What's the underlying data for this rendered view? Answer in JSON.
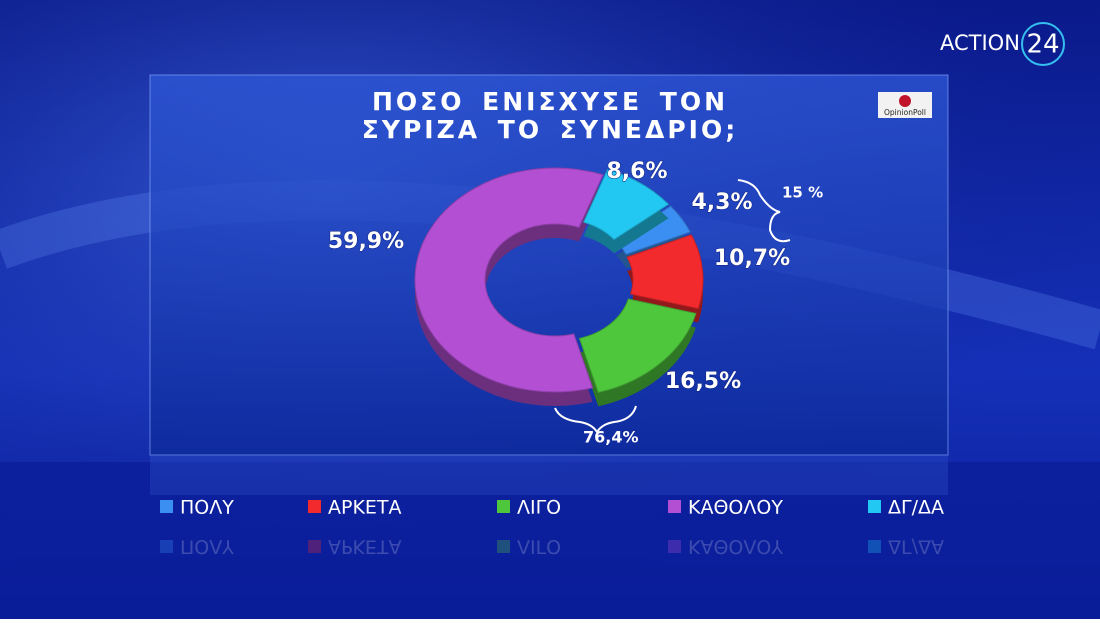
{
  "brand": {
    "name": "ACTION",
    "number": "24"
  },
  "source_logo": "OpinionPoll",
  "chart_data": {
    "type": "donut",
    "title": "ΠΟΣΟ ΕΝΙΣΧΥΣΕ ΤΟΝ ΣΥΡΙΖΑ ΤΟ ΣΥΝΕΔΡΙΟ;",
    "categories": [
      "ΠΟΛΥ",
      "ΑΡΚΕΤΑ",
      "ΛΙΓΟ",
      "ΚΑΘΟΛΟΥ",
      "ΔΓ/ΔΑ"
    ],
    "values": [
      4.3,
      10.7,
      16.5,
      59.9,
      8.6
    ],
    "value_labels": [
      "4,3%",
      "10,7%",
      "16,5%",
      "59,9%",
      "8,6%"
    ],
    "colors": [
      "#3b8ff2",
      "#f22a2e",
      "#4fc73d",
      "#b24fd2",
      "#22c8f2"
    ],
    "annotations": [
      "15 %",
      "76,4%"
    ],
    "legend": "bottom"
  }
}
